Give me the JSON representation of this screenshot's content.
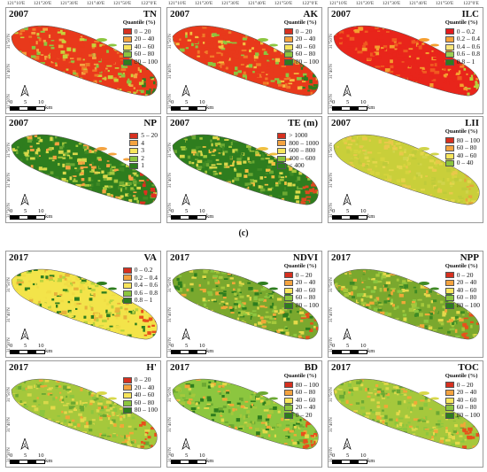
{
  "caption": "(c)",
  "lon_labels": [
    "121°10′E",
    "121°20′E",
    "121°30′E",
    "121°40′E",
    "121°50′E",
    "122°0′E"
  ],
  "lat_labels": [
    "31°50′N",
    "31°40′N",
    "31°30′N"
  ],
  "scale": {
    "ticks": [
      "0",
      "5",
      "10"
    ],
    "unit": "km"
  },
  "north_label": "N",
  "panels": [
    {
      "year": "2007",
      "title": "TN",
      "legend_title": "Quantile (%)",
      "legend": [
        {
          "label": "0 – 20",
          "color": "#d7301f"
        },
        {
          "label": "20 – 40",
          "color": "#f4a340"
        },
        {
          "label": "40 – 60",
          "color": "#f7e55c"
        },
        {
          "label": "60 – 80",
          "color": "#8cc63f"
        },
        {
          "label": "80 – 100",
          "color": "#2e7d1e"
        }
      ],
      "palette": [
        "#e8391b",
        "#e8391b",
        "#f07a28",
        "#f4a340",
        "#c9d13a",
        "#8cc63f",
        "#2e7d1e"
      ]
    },
    {
      "year": "2007",
      "title": "AK",
      "legend_title": "Quantile (%)",
      "legend": [
        {
          "label": "0 – 20",
          "color": "#d7301f"
        },
        {
          "label": "20 – 40",
          "color": "#f4a340"
        },
        {
          "label": "40 – 60",
          "color": "#f7e55c"
        },
        {
          "label": "60 – 80",
          "color": "#8cc63f"
        },
        {
          "label": "80 – 100",
          "color": "#2e7d1e"
        }
      ],
      "palette": [
        "#e8391b",
        "#e8391b",
        "#e8391b",
        "#f07a28",
        "#f4c040",
        "#8cc63f",
        "#2e7d1e"
      ]
    },
    {
      "year": "2007",
      "title": "ILC",
      "legend_title": "Quantile (%)",
      "legend": [
        {
          "label": "0 – 0.2",
          "color": "#e31a1c"
        },
        {
          "label": "0.2 – 0.4",
          "color": "#f7a23a"
        },
        {
          "label": "0.4 – 0.6",
          "color": "#fbe77a"
        },
        {
          "label": "0.6 – 0.8",
          "color": "#9ccf53"
        },
        {
          "label": "0.8 – 1",
          "color": "#2e7d1e"
        }
      ],
      "palette": [
        "#e8251b",
        "#e8251b",
        "#e8251b",
        "#e8251b",
        "#f05a20",
        "#f59f2f",
        "#b7d23d"
      ]
    },
    {
      "year": "2007",
      "title": "NP",
      "legend_title": "",
      "legend": [
        {
          "label": "5 – 20",
          "color": "#d7301f"
        },
        {
          "label": "4",
          "color": "#f4a340"
        },
        {
          "label": "3",
          "color": "#f7e55c"
        },
        {
          "label": "2",
          "color": "#8cc63f"
        },
        {
          "label": "1",
          "color": "#2e7d1e"
        }
      ],
      "palette": [
        "#2e7d1e",
        "#3f8a24",
        "#6ba832",
        "#a5c83c",
        "#d8d84a",
        "#f4a340",
        "#e0301f"
      ]
    },
    {
      "year": "2007",
      "title": "TE (m)",
      "legend_title": "",
      "legend": [
        {
          "label": "> 1000",
          "color": "#d7301f"
        },
        {
          "label": "800 – 1000",
          "color": "#f4a340"
        },
        {
          "label": "600 – 800",
          "color": "#f7e55c"
        },
        {
          "label": "400 – 600",
          "color": "#8cc63f"
        },
        {
          "label": "< 400",
          "color": "#2e7d1e"
        }
      ],
      "palette": [
        "#2e7d1e",
        "#3f8a24",
        "#6ba832",
        "#a5c83c",
        "#d8d84a",
        "#f0c040",
        "#e04a1f"
      ]
    },
    {
      "year": "2007",
      "title": "LII",
      "legend_title": "Quantile (%)",
      "legend": [
        {
          "label": "80 – 100",
          "color": "#d7301f"
        },
        {
          "label": "60 – 80",
          "color": "#f4a340"
        },
        {
          "label": "40 – 60",
          "color": "#f7e55c"
        },
        {
          "label": "0 – 40",
          "color": "#8cc63f"
        }
      ],
      "palette": [
        "#c9cf3a",
        "#d6d43e",
        "#e3d64a",
        "#e9c84a",
        "#bfcb3a",
        "#d0d44a",
        "#e4a83a"
      ]
    },
    {
      "year": "2017",
      "title": "VA",
      "legend_title": "",
      "legend": [
        {
          "label": "0 – 0.2",
          "color": "#d7301f"
        },
        {
          "label": "0.2 – 0.4",
          "color": "#f4a340"
        },
        {
          "label": "0.4 – 0.6",
          "color": "#f7e55c"
        },
        {
          "label": "0.6 – 0.8",
          "color": "#8cc63f"
        },
        {
          "label": "0.8 – 1",
          "color": "#2e7d1e"
        }
      ],
      "palette": [
        "#f3e44a",
        "#f0dc45",
        "#f3e44a",
        "#b7d23d",
        "#e7b23a",
        "#2e7d1e",
        "#e8501b"
      ]
    },
    {
      "year": "2017",
      "title": "NDVI",
      "legend_title": "Quantile (%)",
      "legend": [
        {
          "label": "0 – 20",
          "color": "#d7301f"
        },
        {
          "label": "20 – 40",
          "color": "#f4a340"
        },
        {
          "label": "40 – 60",
          "color": "#f7e55c"
        },
        {
          "label": "60 – 80",
          "color": "#8cc63f"
        },
        {
          "label": "80 – 100",
          "color": "#2e7d1e"
        }
      ],
      "palette": [
        "#7aa82e",
        "#a5c83c",
        "#e5d94a",
        "#f0a838",
        "#8cc63f",
        "#2e7d1e",
        "#e8501b"
      ]
    },
    {
      "year": "2017",
      "title": "NPP",
      "legend_title": "Quantile (%)",
      "legend": [
        {
          "label": "0 – 20",
          "color": "#d7301f"
        },
        {
          "label": "20 – 40",
          "color": "#f4a340"
        },
        {
          "label": "40 – 60",
          "color": "#f7e55c"
        },
        {
          "label": "60 – 80",
          "color": "#8cc63f"
        },
        {
          "label": "80 – 100",
          "color": "#2e7d1e"
        }
      ],
      "palette": [
        "#7aa82e",
        "#a5c83c",
        "#e5d94a",
        "#f0a838",
        "#8cc63f",
        "#3f8a24",
        "#e8501b"
      ]
    },
    {
      "year": "2017",
      "title": "H'",
      "legend_title": "",
      "legend": [
        {
          "label": "0 – 20",
          "color": "#d7301f"
        },
        {
          "label": "20 – 40",
          "color": "#f4a340"
        },
        {
          "label": "40 – 60",
          "color": "#f7e55c"
        },
        {
          "label": "60 – 80",
          "color": "#8cc63f"
        },
        {
          "label": "80 – 100",
          "color": "#2e7d1e"
        }
      ],
      "palette": [
        "#a5c83c",
        "#e5d94a",
        "#f0a838",
        "#8cc63f",
        "#6ba832",
        "#d8d84a",
        "#e8501b"
      ]
    },
    {
      "year": "2017",
      "title": "BD",
      "legend_title": "Quantile (%)",
      "legend": [
        {
          "label": "80 – 100",
          "color": "#d7301f"
        },
        {
          "label": "60 – 80",
          "color": "#f4a340"
        },
        {
          "label": "40 – 60",
          "color": "#f7e55c"
        },
        {
          "label": "20 – 40",
          "color": "#8cc63f"
        },
        {
          "label": "0 – 20",
          "color": "#2e7d1e"
        }
      ],
      "palette": [
        "#8cc63f",
        "#a5c83c",
        "#e5d94a",
        "#f0a838",
        "#2e7d1e",
        "#6ba832",
        "#e8501b"
      ]
    },
    {
      "year": "2017",
      "title": "TOC",
      "legend_title": "Quantile (%)",
      "legend": [
        {
          "label": "0 – 20",
          "color": "#d7301f"
        },
        {
          "label": "20 – 40",
          "color": "#f4a340"
        },
        {
          "label": "40 – 60",
          "color": "#f7e55c"
        },
        {
          "label": "60 – 80",
          "color": "#8cc63f"
        },
        {
          "label": "80 – 100",
          "color": "#2e7d1e"
        }
      ],
      "palette": [
        "#a5c83c",
        "#e5d94a",
        "#f0a838",
        "#8cc63f",
        "#6ba832",
        "#d8d84a",
        "#e8501b"
      ]
    }
  ]
}
